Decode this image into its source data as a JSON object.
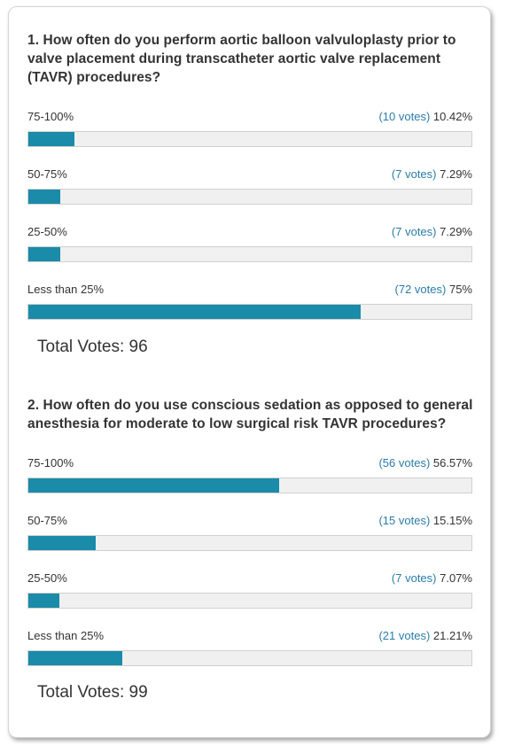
{
  "polls": [
    {
      "question": "1. How often do you perform aortic balloon valvuloplasty prior to valve placement during transcatheter aortic valve replacement (TAVR) procedures?",
      "options": [
        {
          "label": "75-100%",
          "votes": "(10 votes)",
          "percent": "10.42%",
          "fraction": 0.1042
        },
        {
          "label": "50-75%",
          "votes": "(7 votes)",
          "percent": "7.29%",
          "fraction": 0.0729
        },
        {
          "label": "25-50%",
          "votes": "(7 votes)",
          "percent": "7.29%",
          "fraction": 0.0729
        },
        {
          "label": "Less than 25%",
          "votes": "(72 votes)",
          "percent": "75%",
          "fraction": 0.75
        }
      ],
      "total": "Total Votes: 96"
    },
    {
      "question": "2. How often do you use conscious sedation as opposed to general anesthesia for moderate to low surgical risk TAVR procedures?",
      "options": [
        {
          "label": "75-100%",
          "votes": "(56 votes)",
          "percent": "56.57%",
          "fraction": 0.5657
        },
        {
          "label": "50-75%",
          "votes": "(15 votes)",
          "percent": "15.15%",
          "fraction": 0.1515
        },
        {
          "label": "25-50%",
          "votes": "(7 votes)",
          "percent": "7.07%",
          "fraction": 0.0707
        },
        {
          "label": "Less than 25%",
          "votes": "(21 votes)",
          "percent": "21.21%",
          "fraction": 0.2121
        }
      ],
      "total": "Total Votes: 99"
    }
  ],
  "colors": {
    "bar_fill": "#1a8ba8",
    "votes_link": "#2a7da8",
    "bar_track": "#f0f0f0"
  }
}
